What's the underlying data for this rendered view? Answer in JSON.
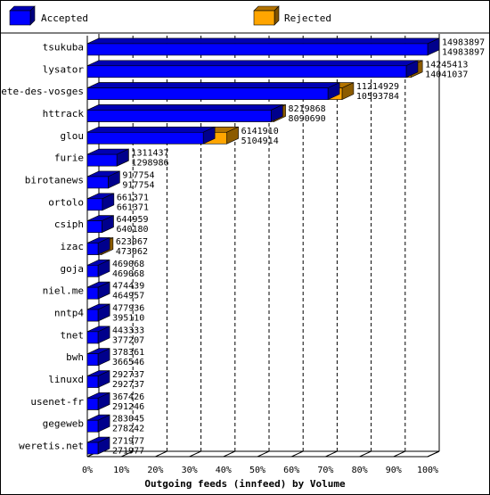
{
  "chart_data": {
    "type": "bar",
    "orientation": "horizontal",
    "stacked_overlay": true,
    "title": "",
    "xlabel": "Outgoing feeds (innfeed) by Volume",
    "ylabel": "",
    "xlim": [
      0,
      100
    ],
    "x_ticks": [
      "0%",
      "10%",
      "20%",
      "30%",
      "40%",
      "50%",
      "60%",
      "70%",
      "80%",
      "90%",
      "100%"
    ],
    "grid": "vertical-dashed",
    "legend": "top",
    "max_value": 14983897,
    "categories": [
      "tsukuba",
      "lysator",
      "bete-des-vosges",
      "httrack",
      "glou",
      "furie",
      "birotanews",
      "ortolo",
      "csiph",
      "izac",
      "goja",
      "niel.me",
      "nntp4",
      "tnet",
      "bwh",
      "linuxd",
      "usenet-fr",
      "gegeweb",
      "weretis.net"
    ],
    "series": [
      {
        "name": "Accepted",
        "color": "#0000ff",
        "values": [
          14983897,
          14041037,
          10593784,
          8090690,
          5104914,
          1298986,
          917754,
          661371,
          640180,
          473062,
          469068,
          464957,
          395110,
          377207,
          366546,
          292737,
          291246,
          278242,
          271977
        ]
      },
      {
        "name": "Rejected",
        "color": "#ffa500",
        "values": [
          14983897,
          14245413,
          11214929,
          8219868,
          6141910,
          1311437,
          917754,
          661371,
          644959,
          623067,
          469068,
          474439,
          477936,
          443333,
          378361,
          292737,
          367426,
          283045,
          271977
        ]
      }
    ],
    "labels_top": [
      "14983897",
      "14245413",
      "11214929",
      "8219868",
      "6141910",
      "1311437",
      "917754",
      "661371",
      "644959",
      "623067",
      "469068",
      "474439",
      "477936",
      "443333",
      "378361",
      "292737",
      "367426",
      "283045",
      "271977"
    ],
    "labels_bottom": [
      "14983897",
      "14041037",
      "10593784",
      "8090690",
      "5104914",
      "1298986",
      "917754",
      "661371",
      "640180",
      "473062",
      "469068",
      "464957",
      "395110",
      "377207",
      "366546",
      "292737",
      "291246",
      "278242",
      "271977"
    ]
  },
  "legend": {
    "accepted_label": "Accepted",
    "rejected_label": "Rejected"
  }
}
